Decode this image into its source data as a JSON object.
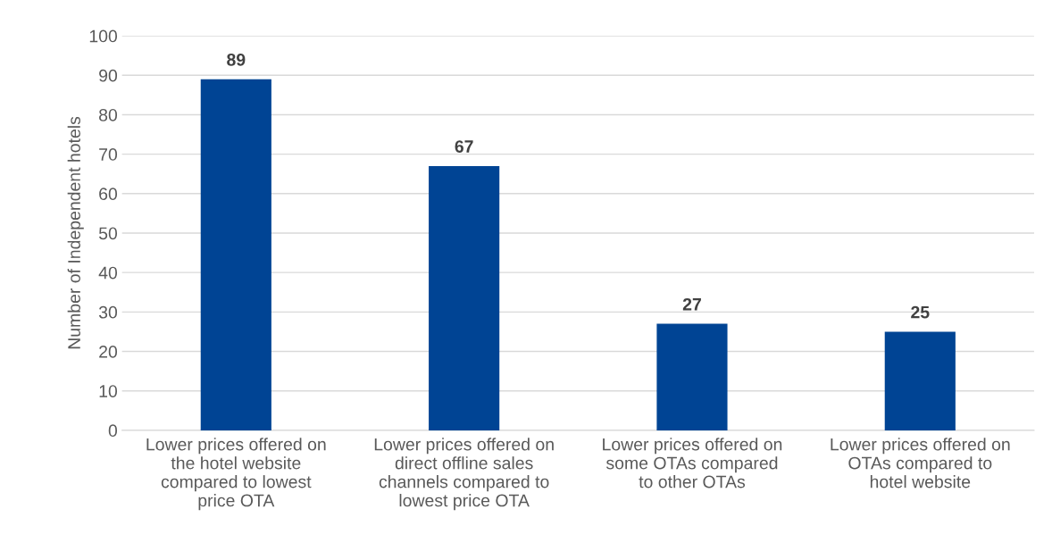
{
  "chart_data": {
    "type": "bar",
    "ylabel": "Number of Independent hotels",
    "categories": [
      "Lower prices offered on\nthe hotel website\ncompared to lowest\nprice OTA",
      "Lower prices offered on\ndirect offline sales\nchannels compared to\nlowest price OTA",
      "Lower prices offered on\nsome OTAs compared\nto other OTAs",
      "Lower prices offered on\nOTAs compared to\nhotel website"
    ],
    "values": [
      89,
      67,
      27,
      25
    ],
    "color": "#004494",
    "ylim": [
      0,
      100
    ],
    "yticks": [
      0,
      10,
      20,
      30,
      40,
      50,
      60,
      70,
      80,
      90,
      100
    ],
    "grid": "y",
    "data_labels": true
  }
}
